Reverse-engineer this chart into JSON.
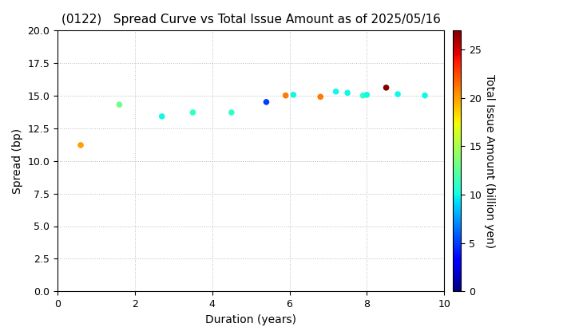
{
  "title": "(0122)   Spread Curve vs Total Issue Amount as of 2025/05/16",
  "xlabel": "Duration (years)",
  "ylabel": "Spread (bp)",
  "colorbar_label": "Total Issue Amount (billion yen)",
  "xlim": [
    0,
    10
  ],
  "ylim": [
    0.0,
    20.0
  ],
  "yticks": [
    0.0,
    2.5,
    5.0,
    7.5,
    10.0,
    12.5,
    15.0,
    17.5,
    20.0
  ],
  "xticks": [
    0,
    2,
    4,
    6,
    8,
    10
  ],
  "colorbar_ticks": [
    0,
    5,
    10,
    15,
    20,
    25
  ],
  "colorbar_min": 0,
  "colorbar_max": 27,
  "points": [
    {
      "duration": 0.6,
      "spread": 11.2,
      "amount": 20
    },
    {
      "duration": 1.6,
      "spread": 14.3,
      "amount": 13
    },
    {
      "duration": 2.7,
      "spread": 13.4,
      "amount": 10
    },
    {
      "duration": 3.5,
      "spread": 13.7,
      "amount": 11
    },
    {
      "duration": 4.5,
      "spread": 13.7,
      "amount": 11
    },
    {
      "duration": 5.4,
      "spread": 14.5,
      "amount": 5
    },
    {
      "duration": 5.9,
      "spread": 15.0,
      "amount": 21
    },
    {
      "duration": 6.1,
      "spread": 15.05,
      "amount": 10
    },
    {
      "duration": 6.8,
      "spread": 14.9,
      "amount": 21
    },
    {
      "duration": 7.2,
      "spread": 15.3,
      "amount": 10
    },
    {
      "duration": 7.5,
      "spread": 15.2,
      "amount": 10
    },
    {
      "duration": 7.9,
      "spread": 15.0,
      "amount": 11
    },
    {
      "duration": 8.0,
      "spread": 15.05,
      "amount": 10
    },
    {
      "duration": 8.5,
      "spread": 15.6,
      "amount": 27
    },
    {
      "duration": 8.8,
      "spread": 15.1,
      "amount": 10
    },
    {
      "duration": 9.5,
      "spread": 15.0,
      "amount": 10
    }
  ],
  "marker_size": 30,
  "background_color": "#ffffff",
  "grid_color": "#bbbbbb",
  "colormap": "jet",
  "title_fontsize": 11,
  "axis_fontsize": 10,
  "tick_fontsize": 9
}
